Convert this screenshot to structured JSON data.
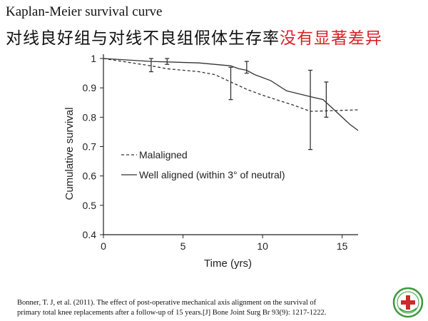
{
  "slide": {
    "title_en": "Kaplan-Meier survival curve",
    "title_zh_black": "对线良好组与对线不良组假体生存率",
    "title_zh_red": "没有显著差异",
    "citation_line1": "Bonner, T. J, et al. (2011). The effect of post-operative mechanical axis alignment on the survival of",
    "citation_line2": "primary total knee replacements after a follow-up of 15 years.[J] Bone Joint Surg Br 93(9): 1217-1222."
  },
  "colors": {
    "red_text": "#d8232a",
    "line": "#333333",
    "logo_green": "#3a9a3a",
    "logo_red": "#cc2a2a"
  },
  "logo": {
    "icon": "hospital-emblem-icon"
  },
  "chart_data": {
    "type": "line",
    "title": "",
    "xlabel": "Time (yrs)",
    "ylabel": "Cumulative survival",
    "xlim": [
      0,
      16
    ],
    "ylim": [
      0.4,
      1.0
    ],
    "xticks": [
      0,
      5,
      10,
      15
    ],
    "yticks": [
      0.4,
      0.5,
      0.6,
      0.7,
      0.8,
      0.9,
      1.0
    ],
    "xtick_labels": [
      "0",
      "5",
      "10",
      "15"
    ],
    "ytick_labels": [
      "0.4",
      "0.5",
      "0.6",
      "0.7",
      "0.8",
      "0.9",
      "1"
    ],
    "grid": false,
    "legend_position": "bottom-left",
    "series": [
      {
        "name": "Malaligned",
        "style": "dashed",
        "points": [
          [
            0,
            1.0
          ],
          [
            3,
            0.975
          ],
          [
            4,
            0.965
          ],
          [
            6,
            0.955
          ],
          [
            7,
            0.945
          ],
          [
            8,
            0.92
          ],
          [
            9,
            0.895
          ],
          [
            10,
            0.875
          ],
          [
            12,
            0.84
          ],
          [
            13,
            0.82
          ],
          [
            16,
            0.825
          ]
        ],
        "error_bars": [
          {
            "x": 4,
            "low": 0.98,
            "high": 1.0
          },
          {
            "x": 8,
            "low": 0.86,
            "high": 0.97
          },
          {
            "x": 13,
            "low": 0.69,
            "high": 0.96
          }
        ]
      },
      {
        "name": "Well aligned (within 3° of neutral)",
        "style": "solid",
        "points": [
          [
            0,
            1.0
          ],
          [
            3,
            0.99
          ],
          [
            6,
            0.985
          ],
          [
            8,
            0.975
          ],
          [
            8.5,
            0.965
          ],
          [
            9,
            0.96
          ],
          [
            9.5,
            0.945
          ],
          [
            10.5,
            0.925
          ],
          [
            11.5,
            0.89
          ],
          [
            13,
            0.87
          ],
          [
            13.8,
            0.86
          ],
          [
            14.5,
            0.825
          ],
          [
            15.5,
            0.775
          ],
          [
            16,
            0.755
          ]
        ],
        "error_bars": [
          {
            "x": 3,
            "low": 0.955,
            "high": 1.0
          },
          {
            "x": 9,
            "low": 0.95,
            "high": 0.99
          },
          {
            "x": 14,
            "low": 0.8,
            "high": 0.92
          }
        ]
      }
    ]
  }
}
